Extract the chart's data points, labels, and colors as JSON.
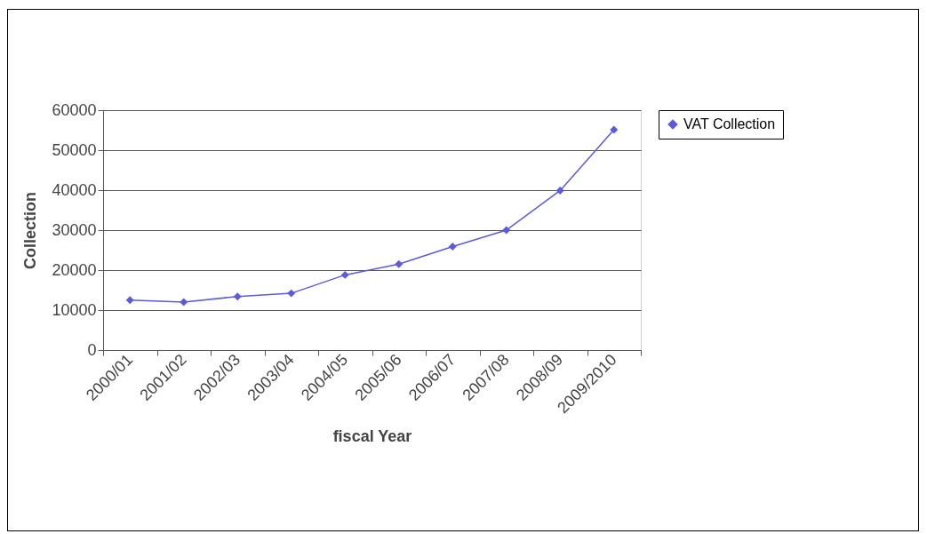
{
  "chart_data": {
    "type": "line",
    "xlabel": "fiscal Year",
    "ylabel": "Collection",
    "categories": [
      "2000/01",
      "2001/02",
      "2002/03",
      "2003/04",
      "2004/05",
      "2005/06",
      "2006/07",
      "2007/08",
      "2008/09",
      "2009/2010"
    ],
    "series": [
      {
        "name": "VAT Collection",
        "color": "#5b5bdc",
        "values": [
          12500,
          12000,
          13400,
          14200,
          18800,
          21500,
          25900,
          30000,
          39900,
          55100
        ]
      }
    ],
    "ylim": [
      0,
      60000
    ],
    "yticks": [
      0,
      10000,
      20000,
      30000,
      40000,
      50000,
      60000
    ],
    "grid": "y",
    "legend": "right",
    "marker": "diamond"
  }
}
